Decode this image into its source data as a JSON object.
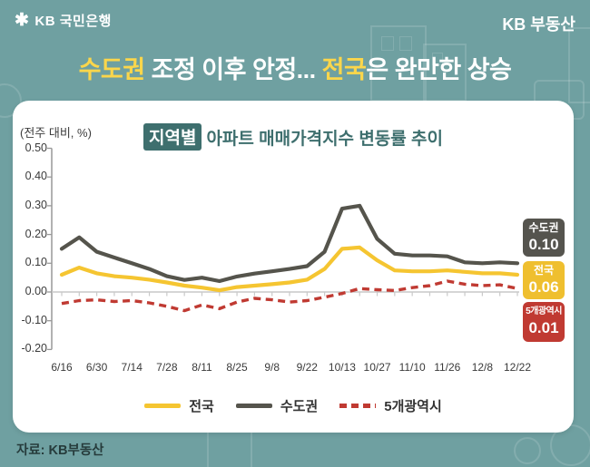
{
  "header": {
    "logo_mark": "✱",
    "logo_text": "KB 국민은행",
    "brand": "KB 부동산"
  },
  "title": {
    "part1": "수도권",
    "part2": " 조정 이후 안정... ",
    "part3": "전국",
    "part4": "은 완만한 상승"
  },
  "chart": {
    "unit_label": "(전주 대비, %)",
    "title_badge": "지역별",
    "title_rest": "아파트 매매가격지수 변동률 추이"
  },
  "chart_data": {
    "type": "line",
    "title": "지역별 아파트 매매가격지수 변동률 추이",
    "unit": "전주 대비, %",
    "ylim": [
      -0.2,
      0.5
    ],
    "grid": "none",
    "legend_position": "bottom",
    "y_ticks": [
      {
        "v": 0.5,
        "label": "0.50"
      },
      {
        "v": 0.4,
        "label": "0.40"
      },
      {
        "v": 0.3,
        "label": "0.30"
      },
      {
        "v": 0.2,
        "label": "0.20"
      },
      {
        "v": 0.1,
        "label": "0.10"
      },
      {
        "v": 0.0,
        "label": "0.00"
      },
      {
        "v": -0.1,
        "label": "-0.10"
      },
      {
        "v": -0.2,
        "label": "-0.20"
      }
    ],
    "n_points": 27,
    "label_every": 2,
    "x_tick_labels": [
      "6/16",
      "6/30",
      "7/14",
      "7/28",
      "8/11",
      "8/25",
      "9/8",
      "9/22",
      "10/13",
      "10/27",
      "11/10",
      "11/26",
      "12/8",
      "12/22"
    ],
    "series": [
      {
        "name": "5개광역시",
        "color": "#C03A32",
        "style": "dashed",
        "values": [
          -0.04,
          -0.03,
          -0.027,
          -0.033,
          -0.03,
          -0.038,
          -0.05,
          -0.065,
          -0.045,
          -0.058,
          -0.035,
          -0.022,
          -0.027,
          -0.035,
          -0.03,
          -0.018,
          -0.005,
          0.012,
          0.008,
          0.005,
          0.015,
          0.022,
          0.038,
          0.027,
          0.022,
          0.025,
          0.012
        ]
      },
      {
        "name": "전국",
        "color": "#F5C531",
        "style": "solid",
        "values": [
          0.06,
          0.085,
          0.065,
          0.055,
          0.05,
          0.043,
          0.033,
          0.022,
          0.015,
          0.006,
          0.017,
          0.022,
          0.027,
          0.033,
          0.043,
          0.08,
          0.15,
          0.155,
          0.11,
          0.075,
          0.072,
          0.072,
          0.075,
          0.07,
          0.065,
          0.065,
          0.06
        ]
      },
      {
        "name": "수도권",
        "color": "#55544C",
        "style": "solid",
        "values": [
          0.15,
          0.19,
          0.14,
          0.12,
          0.1,
          0.08,
          0.055,
          0.042,
          0.05,
          0.038,
          0.054,
          0.064,
          0.072,
          0.08,
          0.09,
          0.14,
          0.29,
          0.3,
          0.185,
          0.133,
          0.127,
          0.127,
          0.124,
          0.103,
          0.1,
          0.103,
          0.1
        ]
      }
    ],
    "legend": [
      {
        "name": "전국",
        "color": "#F5C531",
        "style": "solid"
      },
      {
        "name": "수도권",
        "color": "#55544C",
        "style": "solid"
      },
      {
        "name": "5개광역시",
        "color": "#C03A32",
        "style": "dashed"
      }
    ],
    "callouts": [
      {
        "label": "수도권",
        "value": "0.10",
        "color": "#55544E"
      },
      {
        "label": "전국",
        "value": "0.06",
        "color": "#EFBF2F"
      },
      {
        "label": "5개광역시",
        "value": "0.01",
        "color": "#C03A32"
      }
    ]
  },
  "footer": {
    "source": "자료: KB부동산"
  }
}
